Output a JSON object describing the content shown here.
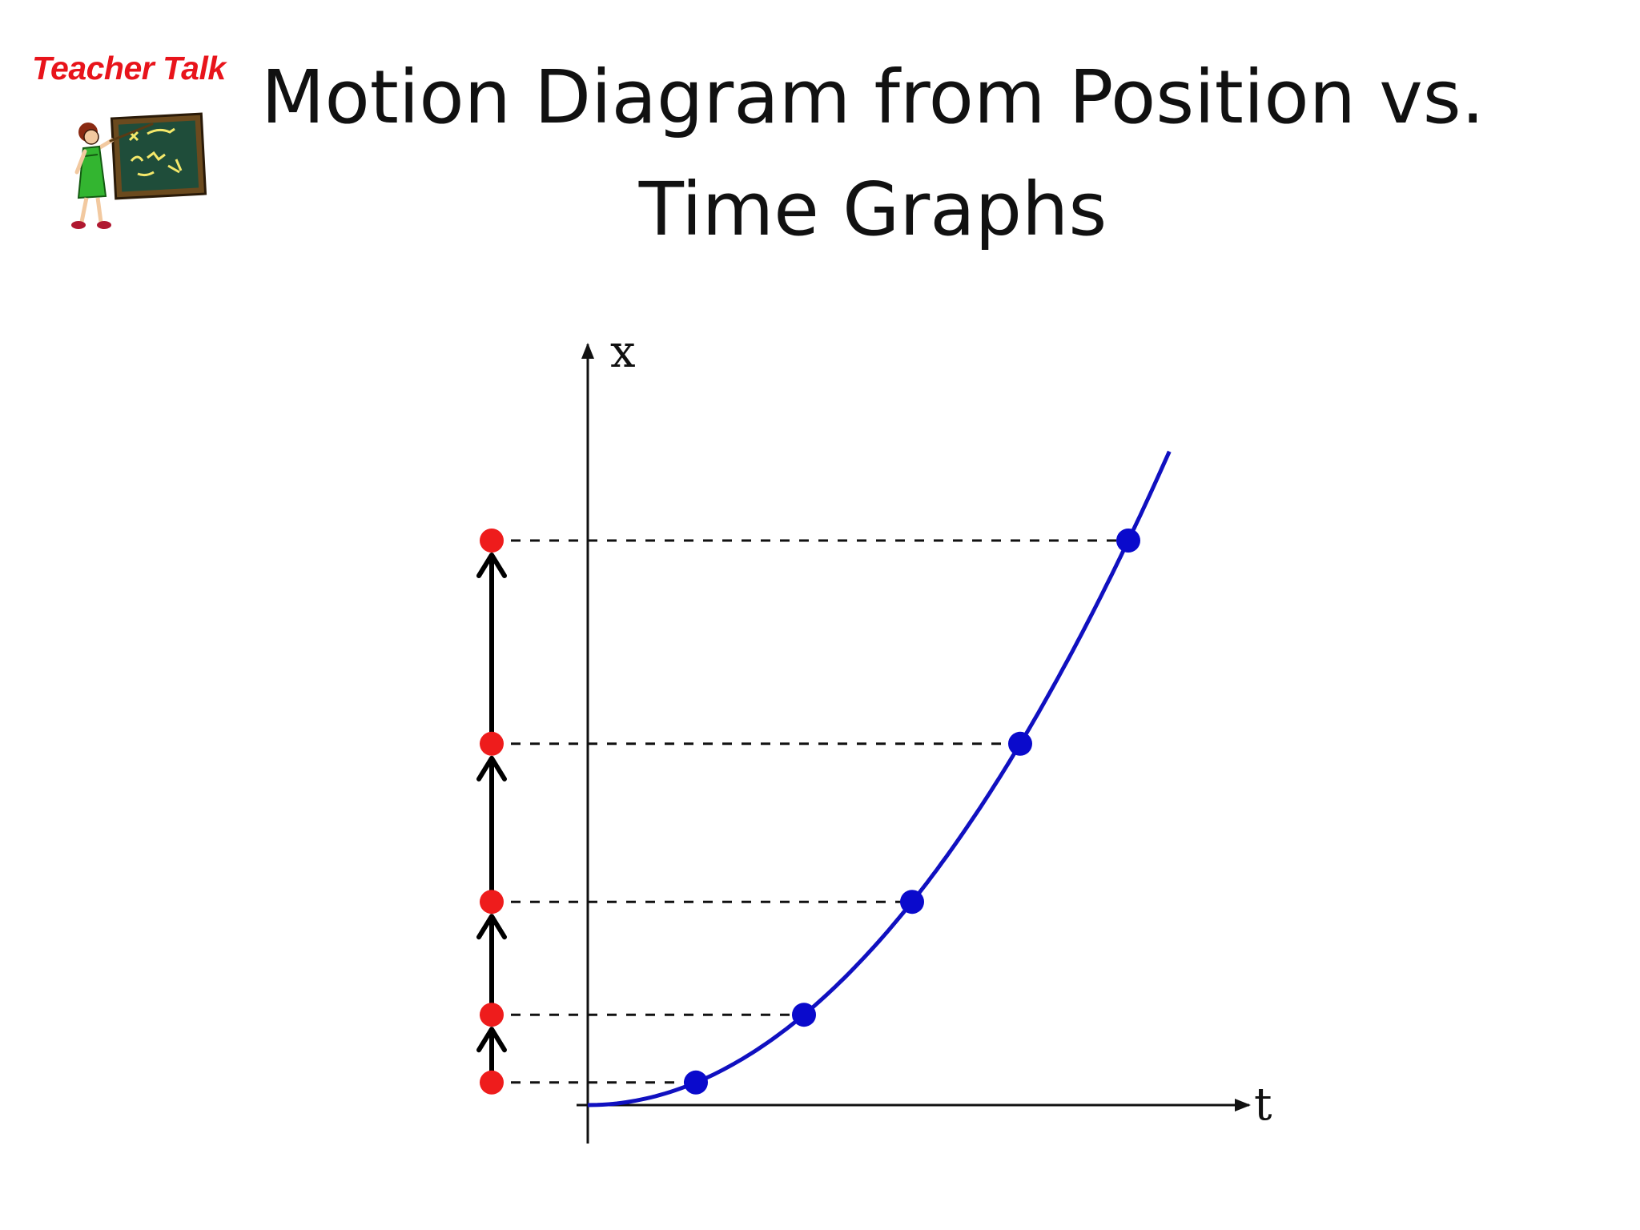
{
  "header": {
    "badge_text": "Teacher Talk",
    "clipart_icon": "teacher-at-chalkboard-icon",
    "title_line1": "Motion Diagram from Position vs.",
    "title_line2": "Time Graphs"
  },
  "graph": {
    "x_axis_label": "t",
    "y_axis_label": "x",
    "curve_color": "#1010c0",
    "time_point_color": "#0a0acc",
    "position_dot_color": "#ee1c1c",
    "arrow_color": "#000000",
    "points": [
      {
        "t": 1,
        "x": 1
      },
      {
        "t": 2,
        "x": 4
      },
      {
        "t": 3,
        "x": 9
      },
      {
        "t": 4,
        "x": 16
      },
      {
        "t": 5,
        "x": 25
      }
    ]
  }
}
